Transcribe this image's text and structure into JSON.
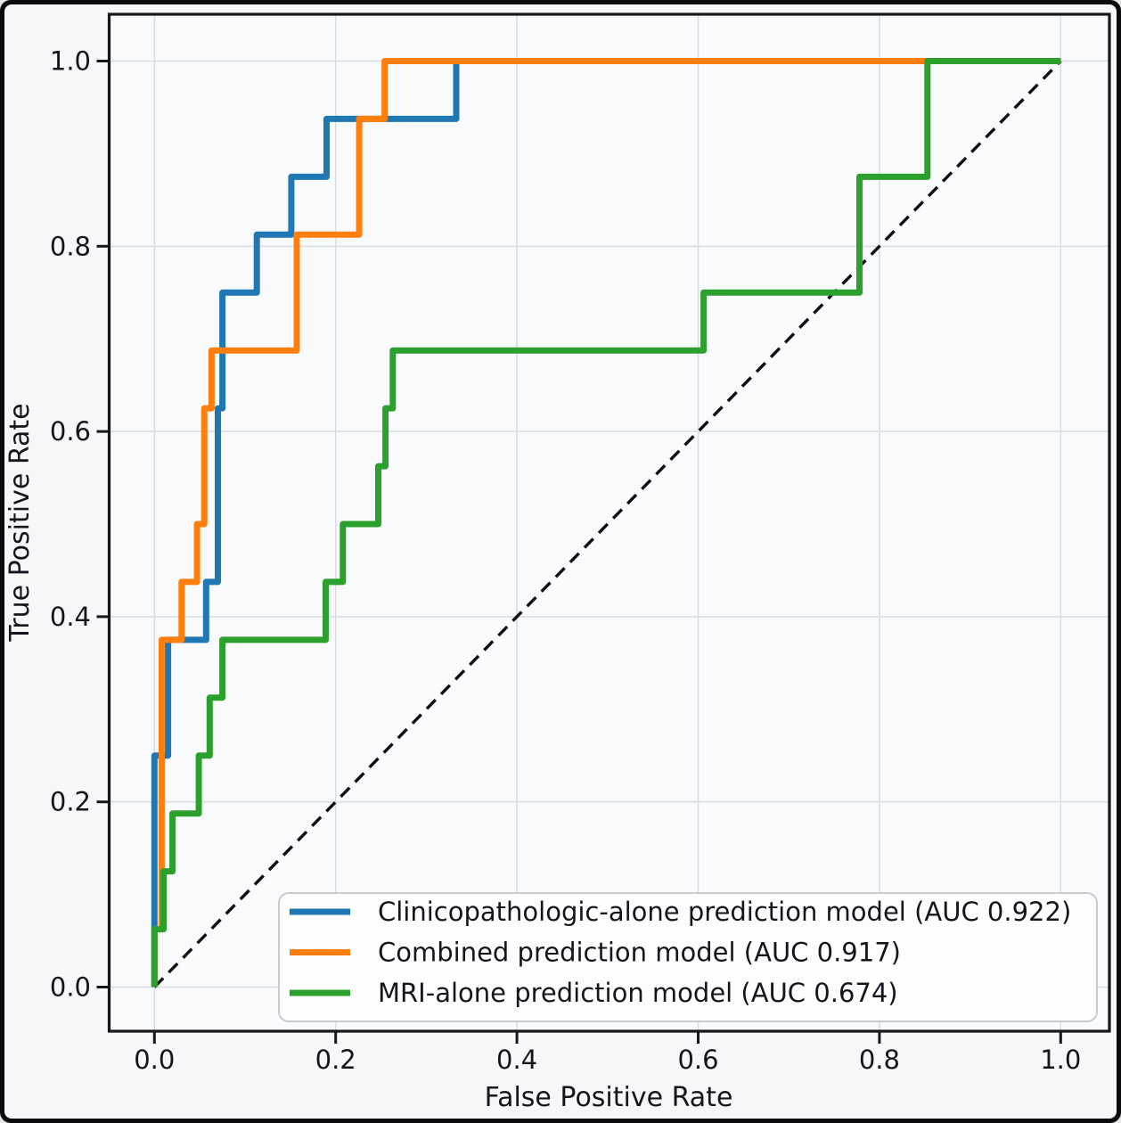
{
  "figure": {
    "kind": "roc-curve-figure",
    "background": "#f5f7f9",
    "plot_background": "#f9fafc",
    "frame_color": "#0a0a0f",
    "grid_color": "#d9dee4",
    "spine_color": "#16161e",
    "text_color": "#15151d"
  },
  "chart_data": {
    "type": "line",
    "subtype": "roc",
    "title": "",
    "xlabel": "False Positive Rate",
    "ylabel": "True Positive Rate",
    "xlim": [
      -0.05,
      1.05
    ],
    "ylim": [
      -0.05,
      1.05
    ],
    "grid": true,
    "legend_position": "lower right",
    "x_ticks": {
      "values": [
        0.0,
        0.2,
        0.4,
        0.6,
        0.8,
        1.0
      ],
      "labels": [
        "0.0",
        "0.2",
        "0.4",
        "0.6",
        "0.8",
        "1.0"
      ]
    },
    "y_ticks": {
      "values": [
        0.0,
        0.2,
        0.4,
        0.6,
        0.8,
        1.0
      ],
      "labels": [
        "0.0",
        "0.2",
        "0.4",
        "0.6",
        "0.8",
        "1.0"
      ]
    },
    "reference_line": {
      "name": "chance-diagonal",
      "style": "dashed",
      "color": "#0d0d12",
      "points": [
        [
          0,
          0
        ],
        [
          1,
          1
        ]
      ]
    },
    "series": [
      {
        "name": "clinicopathologic-alone",
        "legend_label": "Clinicopathologic-alone prediction model (AUC 0.922)",
        "auc": 0.922,
        "color": "#1f77b4",
        "points": [
          [
            0,
            0
          ],
          [
            0,
            0.25
          ],
          [
            0.015,
            0.25
          ],
          [
            0.015,
            0.375
          ],
          [
            0.057,
            0.375
          ],
          [
            0.057,
            0.4375
          ],
          [
            0.07,
            0.4375
          ],
          [
            0.07,
            0.625
          ],
          [
            0.075,
            0.625
          ],
          [
            0.075,
            0.75
          ],
          [
            0.113,
            0.75
          ],
          [
            0.113,
            0.8125
          ],
          [
            0.151,
            0.8125
          ],
          [
            0.151,
            0.875
          ],
          [
            0.19,
            0.875
          ],
          [
            0.19,
            0.9375
          ],
          [
            0.333,
            0.9375
          ],
          [
            0.333,
            1
          ],
          [
            1,
            1
          ]
        ]
      },
      {
        "name": "combined",
        "legend_label": "Combined prediction model (AUC 0.917)",
        "auc": 0.917,
        "color": "#ff7f0e",
        "points": [
          [
            0,
            0
          ],
          [
            0,
            0.0625
          ],
          [
            0.008,
            0.0625
          ],
          [
            0.008,
            0.375
          ],
          [
            0.03,
            0.375
          ],
          [
            0.03,
            0.4375
          ],
          [
            0.047,
            0.4375
          ],
          [
            0.047,
            0.5
          ],
          [
            0.055,
            0.5
          ],
          [
            0.055,
            0.625
          ],
          [
            0.063,
            0.625
          ],
          [
            0.063,
            0.6875
          ],
          [
            0.157,
            0.6875
          ],
          [
            0.157,
            0.8125
          ],
          [
            0.226,
            0.8125
          ],
          [
            0.226,
            0.9375
          ],
          [
            0.254,
            0.9375
          ],
          [
            0.254,
            1
          ],
          [
            1,
            1
          ]
        ]
      },
      {
        "name": "mri-alone",
        "legend_label": "MRI-alone prediction model (AUC 0.674)",
        "auc": 0.674,
        "color": "#2ca02c",
        "points": [
          [
            0,
            0
          ],
          [
            0,
            0.0625
          ],
          [
            0.01,
            0.0625
          ],
          [
            0.01,
            0.125
          ],
          [
            0.02,
            0.125
          ],
          [
            0.02,
            0.1875
          ],
          [
            0.049,
            0.1875
          ],
          [
            0.049,
            0.25
          ],
          [
            0.061,
            0.25
          ],
          [
            0.061,
            0.3125
          ],
          [
            0.075,
            0.3125
          ],
          [
            0.075,
            0.375
          ],
          [
            0.189,
            0.375
          ],
          [
            0.189,
            0.4375
          ],
          [
            0.208,
            0.4375
          ],
          [
            0.208,
            0.5
          ],
          [
            0.247,
            0.5
          ],
          [
            0.247,
            0.5625
          ],
          [
            0.255,
            0.5625
          ],
          [
            0.255,
            0.625
          ],
          [
            0.263,
            0.625
          ],
          [
            0.263,
            0.6875
          ],
          [
            0.606,
            0.6875
          ],
          [
            0.606,
            0.75
          ],
          [
            0.778,
            0.75
          ],
          [
            0.778,
            0.875
          ],
          [
            0.853,
            0.875
          ],
          [
            0.853,
            1
          ],
          [
            1,
            1
          ]
        ]
      }
    ]
  }
}
